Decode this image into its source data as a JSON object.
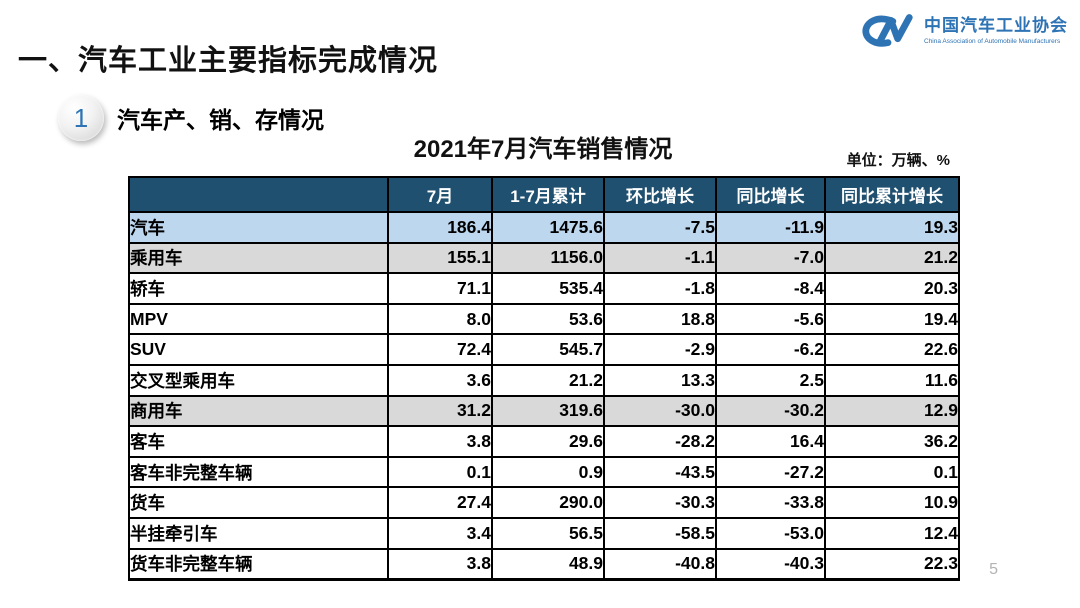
{
  "slide": {
    "main_title": "一、汽车工业主要指标完成情况",
    "section_badge": "1",
    "section_title": "汽车产、销、存情况",
    "page_number": "5"
  },
  "logo": {
    "monogram": "CM",
    "name_zh": "中国汽车工业协会",
    "name_en": "China Association of Automobile Manufacturers",
    "color": "#2E74B5"
  },
  "table": {
    "title": "2021年7月汽车销售情况",
    "unit_note": "单位：万辆、%",
    "columns": [
      "",
      "7月",
      "1-7月累计",
      "环比增长",
      "同比增长",
      "同比累计增长"
    ],
    "rows": [
      {
        "label": "汽车",
        "indent": 0,
        "highlight": "blue",
        "values": [
          "186.4",
          "1475.6",
          "-7.5",
          "-11.9",
          "19.3"
        ]
      },
      {
        "label": "乘用车",
        "indent": 1,
        "highlight": "gray",
        "values": [
          "155.1",
          "1156.0",
          "-1.1",
          "-7.0",
          "21.2"
        ]
      },
      {
        "label": "轿车",
        "indent": 2,
        "highlight": "none",
        "values": [
          "71.1",
          "535.4",
          "-1.8",
          "-8.4",
          "20.3"
        ]
      },
      {
        "label": "MPV",
        "indent": 2,
        "highlight": "none",
        "values": [
          "8.0",
          "53.6",
          "18.8",
          "-5.6",
          "19.4"
        ]
      },
      {
        "label": "SUV",
        "indent": 2,
        "highlight": "none",
        "values": [
          "72.4",
          "545.7",
          "-2.9",
          "-6.2",
          "22.6"
        ]
      },
      {
        "label": "交叉型乘用车",
        "indent": 2,
        "highlight": "none",
        "values": [
          "3.6",
          "21.2",
          "13.3",
          "2.5",
          "11.6"
        ]
      },
      {
        "label": "商用车",
        "indent": 1,
        "highlight": "gray",
        "values": [
          "31.2",
          "319.6",
          "-30.0",
          "-30.2",
          "12.9"
        ]
      },
      {
        "label": "客车",
        "indent": 2,
        "highlight": "none",
        "values": [
          "3.8",
          "29.6",
          "-28.2",
          "16.4",
          "36.2"
        ]
      },
      {
        "label": "客车非完整车辆",
        "indent": 3,
        "highlight": "none",
        "values": [
          "0.1",
          "0.9",
          "-43.5",
          "-27.2",
          "0.1"
        ]
      },
      {
        "label": "货车",
        "indent": 2,
        "highlight": "none",
        "values": [
          "27.4",
          "290.0",
          "-30.3",
          "-33.8",
          "10.9"
        ]
      },
      {
        "label": "半挂牵引车",
        "indent": 3,
        "highlight": "none",
        "values": [
          "3.4",
          "56.5",
          "-58.5",
          "-53.0",
          "12.4"
        ]
      },
      {
        "label": "货车非完整车辆",
        "indent": 3,
        "highlight": "none",
        "values": [
          "3.8",
          "48.9",
          "-40.8",
          "-40.3",
          "22.3"
        ]
      }
    ],
    "colors": {
      "header_bg": "#20506F",
      "row_blue": "#BDD7EE",
      "row_gray": "#D9D9D9",
      "accent_blue": "#2E74B5"
    }
  }
}
